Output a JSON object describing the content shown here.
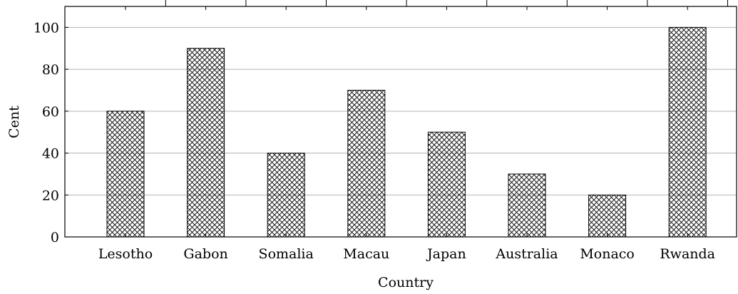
{
  "chart_data": {
    "type": "bar",
    "categories": [
      "Lesotho",
      "Gabon",
      "Somalia",
      "Macau",
      "Japan",
      "Australia",
      "Monaco",
      "Rwanda"
    ],
    "values": [
      60,
      90,
      40,
      70,
      50,
      30,
      20,
      100
    ],
    "xlabel": "Country",
    "ylabel": "Cent",
    "ylim": [
      0,
      110
    ],
    "yticks": [
      0,
      20,
      40,
      60,
      80,
      100
    ],
    "grid": "horizontal",
    "bar_fill": "crosshatch",
    "colors": {
      "bar_stroke": "#000000",
      "grid": "#b3b3b3",
      "axis": "#000000"
    }
  }
}
